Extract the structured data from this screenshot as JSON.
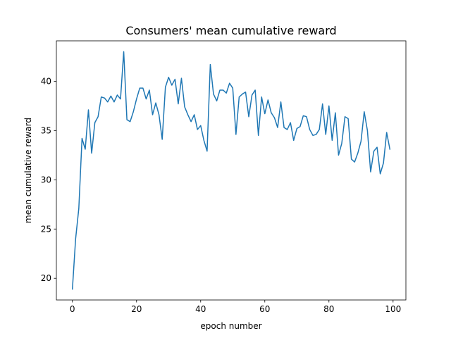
{
  "chart_data": {
    "type": "line",
    "title": "Consumers' mean cumulative reward",
    "xlabel": "epoch number",
    "ylabel": "mean cumulative reward",
    "xlim": [
      -5,
      104
    ],
    "ylim": [
      17.8,
      44.1
    ],
    "xticks": [
      0,
      20,
      40,
      60,
      80,
      100
    ],
    "yticks": [
      20,
      25,
      30,
      35,
      40
    ],
    "grid": false,
    "line_color": "#1f77b4",
    "series": [
      {
        "x": [
          0,
          1,
          2,
          3,
          4,
          5,
          6,
          7,
          8,
          9,
          10,
          11,
          12,
          13,
          14,
          15,
          16,
          17,
          18,
          19,
          20,
          21,
          22,
          23,
          24,
          25,
          26,
          27,
          28,
          29,
          30,
          31,
          32,
          33,
          34,
          35,
          36,
          37,
          38,
          39,
          40,
          41,
          42,
          43,
          44,
          45,
          46,
          47,
          48,
          49,
          50,
          51,
          52,
          53,
          54,
          55,
          56,
          57,
          58,
          59,
          60,
          61,
          62,
          63,
          64,
          65,
          66,
          67,
          68,
          69,
          70,
          71,
          72,
          73,
          74,
          75,
          76,
          77,
          78,
          79,
          80,
          81,
          82,
          83,
          84,
          85,
          86,
          87,
          88,
          89,
          90,
          91,
          92,
          93,
          94,
          95,
          96,
          97,
          98,
          99
        ],
        "values": [
          18.9,
          24.0,
          27.1,
          34.2,
          33.1,
          37.1,
          32.7,
          35.8,
          36.4,
          38.4,
          38.3,
          37.9,
          38.5,
          37.9,
          38.6,
          38.2,
          43.0,
          36.1,
          35.9,
          36.9,
          38.2,
          39.3,
          39.3,
          38.2,
          39.1,
          36.6,
          37.8,
          36.6,
          34.1,
          39.4,
          40.4,
          39.6,
          40.2,
          37.7,
          40.3,
          37.4,
          36.6,
          35.9,
          36.6,
          35.1,
          35.5,
          34.0,
          32.9,
          41.7,
          38.7,
          38.0,
          39.1,
          39.1,
          38.8,
          39.8,
          39.3,
          34.6,
          38.4,
          38.7,
          38.9,
          36.4,
          38.6,
          39.1,
          34.5,
          38.4,
          36.7,
          38.1,
          36.8,
          36.3,
          35.3,
          37.9,
          35.3,
          35.1,
          35.8,
          34.0,
          35.2,
          35.4,
          36.5,
          36.4,
          35.1,
          34.5,
          34.6,
          35.1,
          37.7,
          34.6,
          37.5,
          34.0,
          36.8,
          32.5,
          33.7,
          36.4,
          36.2,
          32.1,
          31.8,
          32.7,
          33.9,
          36.9,
          35.0,
          30.8,
          32.9,
          33.3,
          30.6,
          31.7,
          34.8,
          33.1
        ]
      }
    ]
  }
}
